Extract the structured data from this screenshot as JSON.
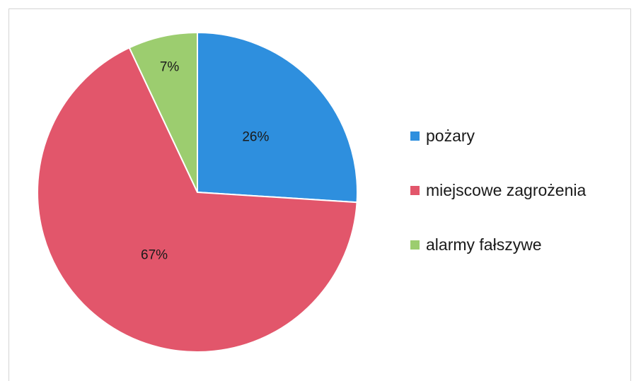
{
  "chart_data": {
    "type": "pie",
    "title": "",
    "categories": [
      "pożary",
      "miejscowe zagrożenia",
      "alarmy fałszywe"
    ],
    "values": [
      26,
      67,
      7
    ],
    "data_labels": [
      "26%",
      "67%",
      "7%"
    ],
    "colors": [
      "#2e8fde",
      "#e2566b",
      "#9ccd6f"
    ],
    "start_angle_deg": 0,
    "direction": "clockwise",
    "legend_placement": "right"
  }
}
